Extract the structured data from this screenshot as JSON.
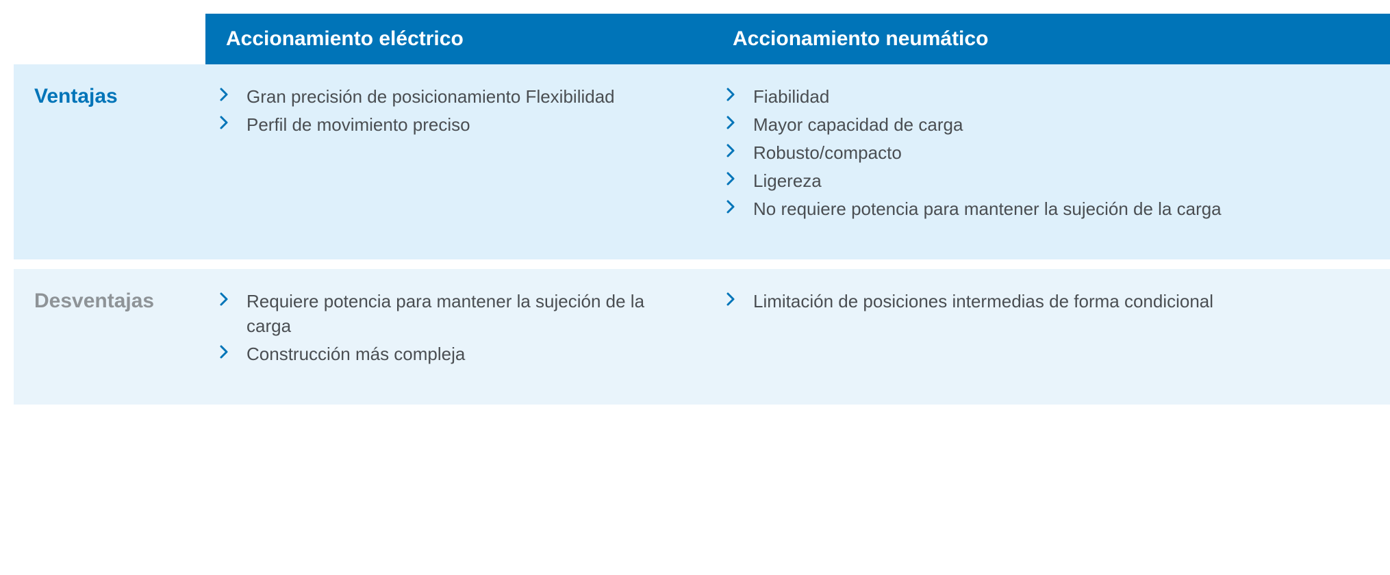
{
  "colors": {
    "header_bg": "#0074b8",
    "header_text": "#ffffff",
    "row1_bg": "#def0fb",
    "row2_bg": "#e9f4fb",
    "label_ventajas": "#0074b8",
    "label_desventajas": "#8e9397",
    "body_text": "#4a4e52",
    "chevron": "#0074b8"
  },
  "columns": {
    "col1": "Accionamiento eléctrico",
    "col2": "Accionamiento neumático"
  },
  "rows": [
    {
      "label": "Ventajas",
      "label_color_key": "label_ventajas",
      "bg_key": "row1_bg",
      "col1_items": [
        "Gran precisión de posicionamiento Flexibilidad",
        "Perfil de movimiento preciso"
      ],
      "col2_items": [
        "Fiabilidad",
        "Mayor capacidad de carga",
        "Robusto/compacto",
        "Ligereza",
        "No requiere potencia para mantener la sujeción de la carga"
      ]
    },
    {
      "label": "Desventajas",
      "label_color_key": "label_desventajas",
      "bg_key": "row2_bg",
      "col1_items": [
        "Requiere potencia para mantener la sujeción de la carga",
        "Construcción más compleja"
      ],
      "col2_items": [
        "Limitación de posiciones intermedias de forma condicional"
      ]
    }
  ]
}
